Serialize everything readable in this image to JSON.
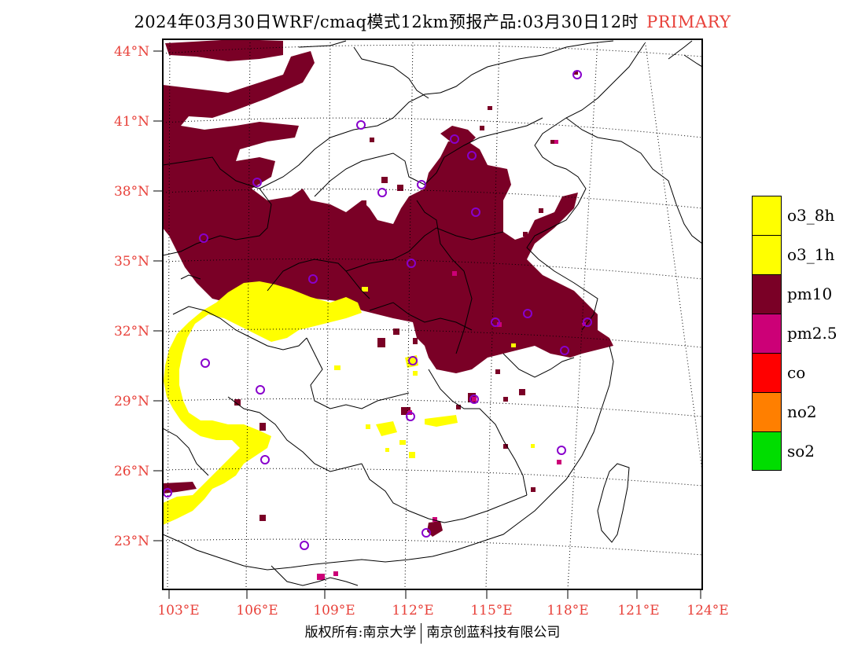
{
  "title": {
    "text": "2024年03月30日WRF/cmaq模式12km预报产品:03月30日12时",
    "tag": "PRIMARY"
  },
  "latitude_labels": [
    "44°N",
    "41°N",
    "38°N",
    "35°N",
    "32°N",
    "29°N",
    "26°N",
    "23°N"
  ],
  "longitude_labels": [
    "103°E",
    "106°E",
    "109°E",
    "112°E",
    "115°E",
    "118°E",
    "121°E",
    "124°E"
  ],
  "legend": [
    {
      "label": "o3_8h",
      "color": "#ffff00"
    },
    {
      "label": "o3_1h",
      "color": "#ffff00"
    },
    {
      "label": "pm10",
      "color": "#7a0026"
    },
    {
      "label": "pm2.5",
      "color": "#cc0077"
    },
    {
      "label": "co",
      "color": "#ff0000"
    },
    {
      "label": "no2",
      "color": "#ff7f00"
    },
    {
      "label": "so2",
      "color": "#00dd00"
    }
  ],
  "footer": {
    "left": "版权所有:南京大学",
    "right": "南京创蓝科技有限公司"
  },
  "colors": {
    "pm10": "#7a0026",
    "o3": "#ffff00",
    "pm25": "#cc0077",
    "station": "#8800cc",
    "label": "#e8413a"
  }
}
